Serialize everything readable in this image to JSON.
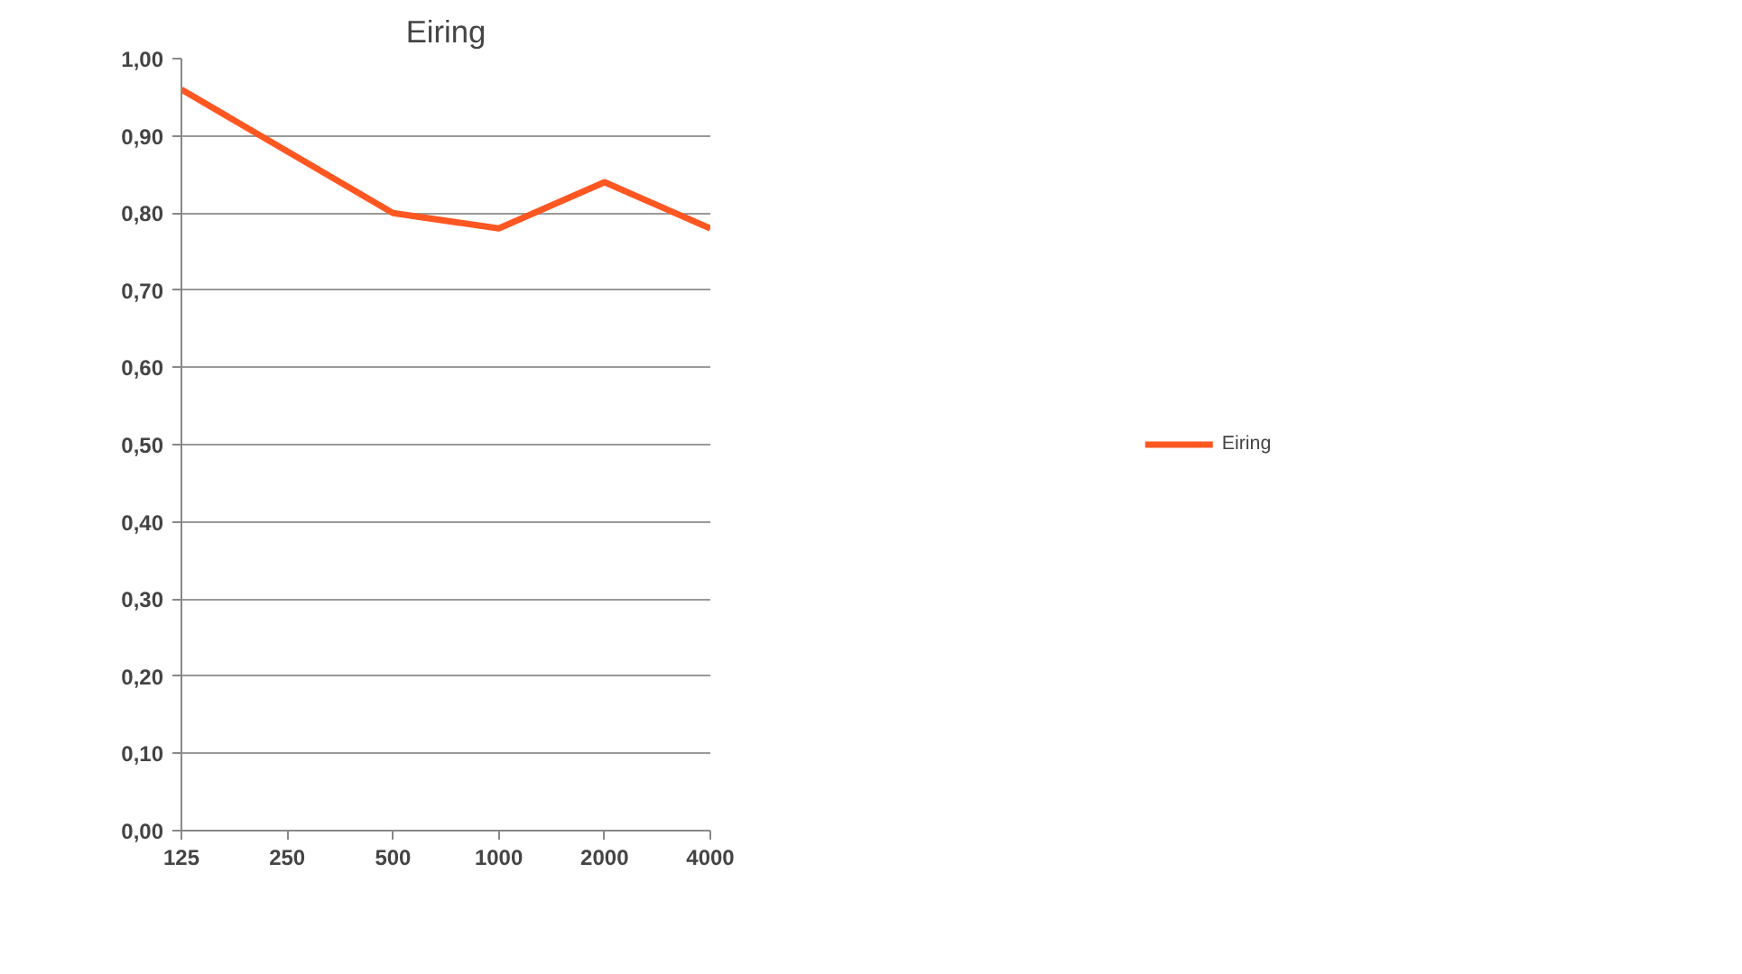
{
  "chart_data": {
    "type": "line",
    "title": "Eiring",
    "categories": [
      "125",
      "250",
      "500",
      "1000",
      "2000",
      "4000"
    ],
    "series": [
      {
        "name": "Eiring",
        "color": "#ff5722",
        "values": [
          0.96,
          0.88,
          0.8,
          0.78,
          0.84,
          0.78
        ]
      }
    ],
    "ylim": [
      0,
      1
    ],
    "yticks": [
      {
        "value": 0,
        "label": "0,00"
      },
      {
        "value": 0.1,
        "label": "0,10"
      },
      {
        "value": 0.2,
        "label": "0,20"
      },
      {
        "value": 0.3,
        "label": "0,30"
      },
      {
        "value": 0.4,
        "label": "0,40"
      },
      {
        "value": 0.5,
        "label": "0,50"
      },
      {
        "value": 0.6,
        "label": "0,60"
      },
      {
        "value": 0.7,
        "label": "0,70"
      },
      {
        "value": 0.8,
        "label": "0,80"
      },
      {
        "value": 0.9,
        "label": "0,90"
      },
      {
        "value": 1,
        "label": "1,00"
      }
    ],
    "grid": "y",
    "legend": "right",
    "marker": "none",
    "line_style": "solid"
  }
}
